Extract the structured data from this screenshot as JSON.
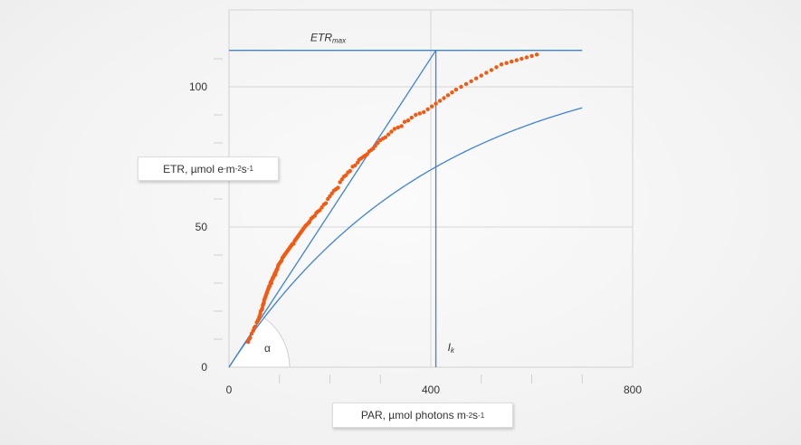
{
  "chart_data": {
    "type": "scatter",
    "x_axis": {
      "label_prefix": "PAR, µmol photons m",
      "label_exp1": "-2",
      "label_mid": " s",
      "label_exp2": "-1",
      "range": [
        0,
        800
      ],
      "ticks": [
        0,
        400,
        800
      ],
      "minor_step": 100
    },
    "y_axis": {
      "label_prefix": "ETR, µmol e",
      "label_sup_e": "-",
      "label_mid": " m",
      "label_exp1": "-2",
      "label_mid2": " s",
      "label_exp2": "-1",
      "range": [
        0,
        115
      ],
      "ticks": [
        0,
        50,
        100
      ],
      "minor_step": 10
    },
    "grid": true,
    "fit_curve": {
      "etr_max": 113,
      "ik": 410,
      "x_end": 700
    },
    "alpha_line": {
      "x_end": 410,
      "y_end": 113
    },
    "etrmax_line": {
      "x_start": 0,
      "x_end": 700,
      "y": 113
    },
    "ik_line": {
      "x": 410,
      "y_top": 113
    },
    "annotations": {
      "etr_max_main": "ETR",
      "etr_max_sub": "max",
      "ik_main": "I",
      "ik_sub": "k",
      "alpha": "α"
    },
    "points": [
      [
        38,
        9
      ],
      [
        40,
        10
      ],
      [
        42,
        10.5
      ],
      [
        45,
        12
      ],
      [
        48,
        13
      ],
      [
        50,
        14
      ],
      [
        52,
        14.5
      ],
      [
        55,
        16
      ],
      [
        57,
        16.5
      ],
      [
        58,
        17
      ],
      [
        60,
        18
      ],
      [
        62,
        19
      ],
      [
        63,
        20
      ],
      [
        65,
        20.5
      ],
      [
        66,
        21
      ],
      [
        67,
        22
      ],
      [
        68,
        22.5
      ],
      [
        69,
        23
      ],
      [
        70,
        24
      ],
      [
        71,
        24.5
      ],
      [
        72,
        25
      ],
      [
        73,
        25.5
      ],
      [
        74,
        26
      ],
      [
        75,
        26.5
      ],
      [
        76,
        27
      ],
      [
        77,
        27.5
      ],
      [
        78,
        28
      ],
      [
        79,
        28.5
      ],
      [
        80,
        29
      ],
      [
        81,
        29
      ],
      [
        82,
        30
      ],
      [
        83,
        30.5
      ],
      [
        84,
        30
      ],
      [
        85,
        31
      ],
      [
        86,
        31.5
      ],
      [
        87,
        32
      ],
      [
        88,
        32
      ],
      [
        89,
        32.5
      ],
      [
        90,
        33
      ],
      [
        91,
        33.5
      ],
      [
        92,
        33
      ],
      [
        93,
        34
      ],
      [
        94,
        34.5
      ],
      [
        95,
        35
      ],
      [
        96,
        35
      ],
      [
        97,
        36
      ],
      [
        98,
        36.5
      ],
      [
        100,
        37
      ],
      [
        102,
        37.5
      ],
      [
        104,
        38
      ],
      [
        106,
        39
      ],
      [
        108,
        39.5
      ],
      [
        110,
        40
      ],
      [
        112,
        40.5
      ],
      [
        114,
        41
      ],
      [
        116,
        41.5
      ],
      [
        118,
        42
      ],
      [
        120,
        42.5
      ],
      [
        122,
        43
      ],
      [
        124,
        43.5
      ],
      [
        126,
        44
      ],
      [
        128,
        44
      ],
      [
        130,
        45
      ],
      [
        132,
        45.5
      ],
      [
        134,
        46
      ],
      [
        136,
        46.5
      ],
      [
        138,
        47
      ],
      [
        140,
        47.5
      ],
      [
        142,
        48
      ],
      [
        144,
        48.5
      ],
      [
        146,
        49
      ],
      [
        148,
        49.5
      ],
      [
        150,
        50
      ],
      [
        152,
        50.5
      ],
      [
        155,
        51
      ],
      [
        158,
        51.5
      ],
      [
        160,
        52
      ],
      [
        163,
        53
      ],
      [
        166,
        53.5
      ],
      [
        170,
        54
      ],
      [
        173,
        55
      ],
      [
        176,
        55.5
      ],
      [
        180,
        56
      ],
      [
        184,
        57
      ],
      [
        188,
        58
      ],
      [
        192,
        58.5
      ],
      [
        196,
        60
      ],
      [
        200,
        61
      ],
      [
        204,
        62
      ],
      [
        208,
        63
      ],
      [
        212,
        63.5
      ],
      [
        216,
        64
      ],
      [
        220,
        66
      ],
      [
        224,
        67
      ],
      [
        228,
        68
      ],
      [
        232,
        68.5
      ],
      [
        236,
        69.5
      ],
      [
        240,
        70
      ],
      [
        245,
        71.5
      ],
      [
        250,
        72
      ],
      [
        255,
        73
      ],
      [
        258,
        74
      ],
      [
        262,
        74.5
      ],
      [
        266,
        75
      ],
      [
        270,
        75.5
      ],
      [
        274,
        76
      ],
      [
        278,
        77
      ],
      [
        282,
        77.5
      ],
      [
        286,
        78
      ],
      [
        290,
        79
      ],
      [
        295,
        80
      ],
      [
        300,
        81
      ],
      [
        305,
        81.5
      ],
      [
        310,
        82
      ],
      [
        316,
        83
      ],
      [
        322,
        84
      ],
      [
        328,
        85
      ],
      [
        335,
        85.5
      ],
      [
        342,
        86
      ],
      [
        348,
        87.5
      ],
      [
        355,
        88
      ],
      [
        362,
        89
      ],
      [
        370,
        90
      ],
      [
        378,
        90.5
      ],
      [
        386,
        91
      ],
      [
        394,
        92
      ],
      [
        402,
        93
      ],
      [
        410,
        94
      ],
      [
        418,
        95
      ],
      [
        426,
        96
      ],
      [
        434,
        97
      ],
      [
        442,
        98
      ],
      [
        450,
        99
      ],
      [
        460,
        100
      ],
      [
        470,
        101
      ],
      [
        480,
        102
      ],
      [
        490,
        103
      ],
      [
        500,
        104
      ],
      [
        510,
        105
      ],
      [
        520,
        106
      ],
      [
        530,
        107
      ],
      [
        540,
        108
      ],
      [
        550,
        108.5
      ],
      [
        560,
        109
      ],
      [
        570,
        109.5
      ],
      [
        580,
        110
      ],
      [
        590,
        110.5
      ],
      [
        600,
        111
      ],
      [
        610,
        111.5
      ]
    ]
  }
}
